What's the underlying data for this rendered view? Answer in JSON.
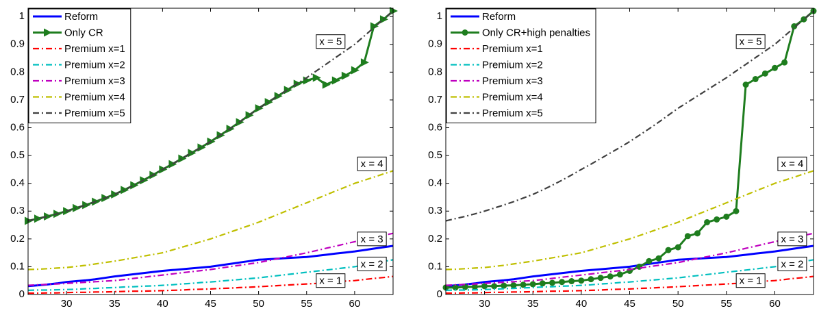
{
  "chart_data": [
    {
      "type": "line",
      "legend": "upper left",
      "grid": false,
      "xlim": [
        26,
        64
      ],
      "ylim": [
        0,
        1.03
      ],
      "xticks": [
        30,
        35,
        40,
        45,
        50,
        55,
        60
      ],
      "yticks": [
        0,
        0.1,
        0.2,
        0.3,
        0.4,
        0.5,
        0.6,
        0.7,
        0.8,
        0.9,
        1
      ],
      "x": [
        26,
        27,
        28,
        29,
        30,
        31,
        32,
        33,
        34,
        35,
        36,
        37,
        38,
        39,
        40,
        41,
        42,
        43,
        44,
        45,
        46,
        47,
        48,
        49,
        50,
        51,
        52,
        53,
        54,
        55,
        56,
        57,
        58,
        59,
        60,
        61,
        62,
        63,
        64
      ],
      "annotations": [
        "x = 1",
        "x = 2",
        "x = 3",
        "x = 4",
        "x = 5"
      ],
      "series": [
        {
          "name": "Reform",
          "color": "#0000ff",
          "style": "solid",
          "values": [
            0.03,
            0.033,
            0.036,
            0.04,
            0.045,
            0.048,
            0.051,
            0.055,
            0.06,
            0.065,
            0.069,
            0.073,
            0.077,
            0.081,
            0.085,
            0.088,
            0.091,
            0.094,
            0.097,
            0.1,
            0.105,
            0.11,
            0.115,
            0.12,
            0.125,
            0.127,
            0.129,
            0.131,
            0.133,
            0.135,
            0.139,
            0.143,
            0.147,
            0.151,
            0.155,
            0.16,
            0.165,
            0.17,
            0.175
          ]
        },
        {
          "name": "Only CR",
          "color": "#1e7d1e",
          "style": "solid",
          "marker": "triangle",
          "values": [
            0.265,
            0.273,
            0.281,
            0.29,
            0.3,
            0.311,
            0.322,
            0.334,
            0.347,
            0.36,
            0.376,
            0.393,
            0.411,
            0.43,
            0.45,
            0.469,
            0.489,
            0.509,
            0.529,
            0.55,
            0.573,
            0.596,
            0.62,
            0.645,
            0.67,
            0.692,
            0.714,
            0.736,
            0.758,
            0.77,
            0.78,
            0.755,
            0.77,
            0.787,
            0.807,
            0.835,
            0.965,
            0.99,
            1.02
          ]
        },
        {
          "name": "Premium x=1",
          "color": "#ff0000",
          "style": "dash-dot",
          "values": [
            0.005,
            0.005,
            0.006,
            0.006,
            0.007,
            0.008,
            0.008,
            0.009,
            0.009,
            0.01,
            0.011,
            0.012,
            0.012,
            0.013,
            0.014,
            0.015,
            0.016,
            0.018,
            0.019,
            0.02,
            0.022,
            0.023,
            0.025,
            0.026,
            0.028,
            0.03,
            0.032,
            0.034,
            0.036,
            0.038,
            0.04,
            0.043,
            0.045,
            0.048,
            0.05,
            0.054,
            0.058,
            0.061,
            0.065
          ]
        },
        {
          "name": "Premium x=2",
          "color": "#00bfbf",
          "style": "dash-dot",
          "values": [
            0.015,
            0.016,
            0.016,
            0.017,
            0.018,
            0.019,
            0.021,
            0.022,
            0.024,
            0.025,
            0.027,
            0.028,
            0.03,
            0.031,
            0.033,
            0.035,
            0.038,
            0.04,
            0.043,
            0.045,
            0.048,
            0.051,
            0.054,
            0.057,
            0.06,
            0.064,
            0.068,
            0.072,
            0.076,
            0.08,
            0.084,
            0.088,
            0.092,
            0.096,
            0.1,
            0.106,
            0.113,
            0.119,
            0.125
          ]
        },
        {
          "name": "Premium x=3",
          "color": "#bf00bf",
          "style": "dash-dot",
          "values": [
            0.033,
            0.035,
            0.036,
            0.038,
            0.04,
            0.042,
            0.044,
            0.046,
            0.048,
            0.05,
            0.054,
            0.058,
            0.062,
            0.066,
            0.07,
            0.074,
            0.078,
            0.082,
            0.086,
            0.09,
            0.095,
            0.1,
            0.105,
            0.11,
            0.115,
            0.122,
            0.129,
            0.136,
            0.143,
            0.15,
            0.158,
            0.166,
            0.174,
            0.182,
            0.19,
            0.198,
            0.205,
            0.213,
            0.22
          ]
        },
        {
          "name": "Premium x=4",
          "color": "#bfbf00",
          "style": "dash-dot",
          "values": [
            0.09,
            0.091,
            0.093,
            0.095,
            0.097,
            0.101,
            0.105,
            0.11,
            0.115,
            0.12,
            0.126,
            0.132,
            0.138,
            0.144,
            0.15,
            0.16,
            0.17,
            0.18,
            0.19,
            0.2,
            0.212,
            0.224,
            0.236,
            0.248,
            0.26,
            0.274,
            0.288,
            0.302,
            0.316,
            0.33,
            0.344,
            0.358,
            0.372,
            0.386,
            0.4,
            0.411,
            0.422,
            0.434,
            0.445
          ]
        },
        {
          "name": "Premium x=5",
          "color": "#404040",
          "style": "dash-dot",
          "values": [
            0.265,
            0.273,
            0.281,
            0.29,
            0.3,
            0.311,
            0.322,
            0.334,
            0.347,
            0.36,
            0.376,
            0.393,
            0.411,
            0.43,
            0.45,
            0.469,
            0.489,
            0.509,
            0.529,
            0.55,
            0.573,
            0.596,
            0.62,
            0.645,
            0.67,
            0.692,
            0.714,
            0.736,
            0.758,
            0.78,
            0.804,
            0.828,
            0.852,
            0.876,
            0.9,
            0.93,
            0.96,
            0.99,
            1.02
          ]
        }
      ]
    },
    {
      "type": "line",
      "legend": "upper left",
      "grid": false,
      "xlim": [
        26,
        64
      ],
      "ylim": [
        0,
        1.03
      ],
      "xticks": [
        30,
        35,
        40,
        45,
        50,
        55,
        60
      ],
      "yticks": [
        0,
        0.1,
        0.2,
        0.3,
        0.4,
        0.5,
        0.6,
        0.7,
        0.8,
        0.9,
        1
      ],
      "x": [
        26,
        27,
        28,
        29,
        30,
        31,
        32,
        33,
        34,
        35,
        36,
        37,
        38,
        39,
        40,
        41,
        42,
        43,
        44,
        45,
        46,
        47,
        48,
        49,
        50,
        51,
        52,
        53,
        54,
        55,
        56,
        57,
        58,
        59,
        60,
        61,
        62,
        63,
        64
      ],
      "annotations": [
        "x = 1",
        "x = 2",
        "x = 3",
        "x = 4",
        "x = 5"
      ],
      "series": [
        {
          "name": "Reform",
          "color": "#0000ff",
          "style": "solid",
          "values": [
            0.03,
            0.033,
            0.036,
            0.04,
            0.045,
            0.048,
            0.051,
            0.055,
            0.06,
            0.065,
            0.069,
            0.073,
            0.077,
            0.081,
            0.085,
            0.088,
            0.091,
            0.094,
            0.097,
            0.1,
            0.105,
            0.11,
            0.115,
            0.12,
            0.125,
            0.127,
            0.129,
            0.131,
            0.133,
            0.135,
            0.139,
            0.143,
            0.147,
            0.151,
            0.155,
            0.16,
            0.165,
            0.17,
            0.175
          ]
        },
        {
          "name": "Only CR+high penalties",
          "color": "#1e7d1e",
          "style": "solid",
          "marker": "circle",
          "values": [
            0.025,
            0.025,
            0.027,
            0.028,
            0.03,
            0.03,
            0.032,
            0.033,
            0.035,
            0.037,
            0.04,
            0.042,
            0.045,
            0.048,
            0.05,
            0.055,
            0.06,
            0.065,
            0.072,
            0.085,
            0.1,
            0.12,
            0.13,
            0.16,
            0.17,
            0.21,
            0.22,
            0.26,
            0.27,
            0.28,
            0.3,
            0.755,
            0.775,
            0.795,
            0.815,
            0.835,
            0.965,
            0.99,
            1.02
          ]
        },
        {
          "name": "Premium x=1",
          "color": "#ff0000",
          "style": "dash-dot",
          "values": [
            0.005,
            0.005,
            0.006,
            0.006,
            0.007,
            0.008,
            0.008,
            0.009,
            0.009,
            0.01,
            0.011,
            0.012,
            0.012,
            0.013,
            0.014,
            0.015,
            0.016,
            0.018,
            0.019,
            0.02,
            0.022,
            0.023,
            0.025,
            0.026,
            0.028,
            0.03,
            0.032,
            0.034,
            0.036,
            0.038,
            0.04,
            0.043,
            0.045,
            0.048,
            0.05,
            0.054,
            0.058,
            0.061,
            0.065
          ]
        },
        {
          "name": "Premium x=2",
          "color": "#00bfbf",
          "style": "dash-dot",
          "values": [
            0.015,
            0.016,
            0.016,
            0.017,
            0.018,
            0.019,
            0.021,
            0.022,
            0.024,
            0.025,
            0.027,
            0.028,
            0.03,
            0.031,
            0.033,
            0.035,
            0.038,
            0.04,
            0.043,
            0.045,
            0.048,
            0.051,
            0.054,
            0.057,
            0.06,
            0.064,
            0.068,
            0.072,
            0.076,
            0.08,
            0.084,
            0.088,
            0.092,
            0.096,
            0.1,
            0.106,
            0.113,
            0.119,
            0.125
          ]
        },
        {
          "name": "Premium x=3",
          "color": "#bf00bf",
          "style": "dash-dot",
          "values": [
            0.033,
            0.035,
            0.036,
            0.038,
            0.04,
            0.042,
            0.044,
            0.046,
            0.048,
            0.05,
            0.054,
            0.058,
            0.062,
            0.066,
            0.07,
            0.074,
            0.078,
            0.082,
            0.086,
            0.09,
            0.095,
            0.1,
            0.105,
            0.11,
            0.115,
            0.122,
            0.129,
            0.136,
            0.143,
            0.15,
            0.158,
            0.166,
            0.174,
            0.182,
            0.19,
            0.198,
            0.205,
            0.213,
            0.22
          ]
        },
        {
          "name": "Premium x=4",
          "color": "#bfbf00",
          "style": "dash-dot",
          "values": [
            0.09,
            0.091,
            0.093,
            0.095,
            0.097,
            0.101,
            0.105,
            0.11,
            0.115,
            0.12,
            0.126,
            0.132,
            0.138,
            0.144,
            0.15,
            0.16,
            0.17,
            0.18,
            0.19,
            0.2,
            0.212,
            0.224,
            0.236,
            0.248,
            0.26,
            0.274,
            0.288,
            0.302,
            0.316,
            0.33,
            0.344,
            0.358,
            0.372,
            0.386,
            0.4,
            0.411,
            0.422,
            0.434,
            0.445
          ]
        },
        {
          "name": "Premium x=5",
          "color": "#404040",
          "style": "dash-dot",
          "values": [
            0.265,
            0.273,
            0.281,
            0.29,
            0.3,
            0.311,
            0.322,
            0.334,
            0.347,
            0.36,
            0.376,
            0.393,
            0.411,
            0.43,
            0.45,
            0.469,
            0.489,
            0.509,
            0.529,
            0.55,
            0.573,
            0.596,
            0.62,
            0.645,
            0.67,
            0.692,
            0.714,
            0.736,
            0.758,
            0.78,
            0.804,
            0.828,
            0.852,
            0.876,
            0.9,
            0.93,
            0.96,
            0.99,
            1.02
          ]
        }
      ]
    }
  ]
}
